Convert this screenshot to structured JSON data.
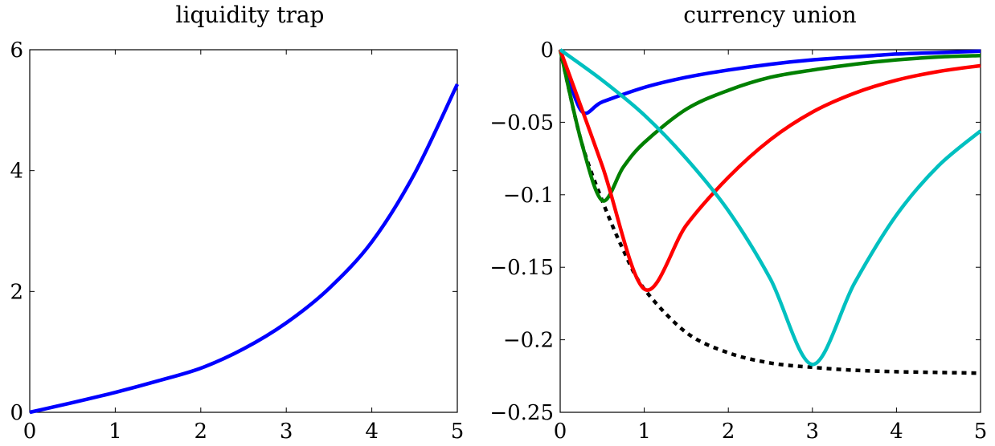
{
  "chart_data": [
    {
      "type": "line",
      "title": "liquidity trap",
      "xlabel": "",
      "ylabel": "",
      "xlim": [
        0,
        5
      ],
      "ylim": [
        0,
        6
      ],
      "xticks": [
        0,
        1,
        2,
        3,
        4,
        5
      ],
      "xtick_labels": [
        "0",
        "1",
        "2",
        "3",
        "4",
        "5"
      ],
      "yticks": [
        0,
        2,
        4,
        6
      ],
      "ytick_labels": [
        "0",
        "2",
        "4",
        "6"
      ],
      "grid": false,
      "series": [
        {
          "color": "#0000ff",
          "style": "solid",
          "x": [
            0,
            0.5,
            1,
            1.5,
            2,
            2.5,
            3,
            3.5,
            4,
            4.5,
            5
          ],
          "y": [
            0,
            0.16,
            0.33,
            0.52,
            0.73,
            1.05,
            1.48,
            2.05,
            2.82,
            3.95,
            5.43
          ]
        }
      ]
    },
    {
      "type": "line",
      "title": "currency union",
      "xlabel": "",
      "ylabel": "",
      "xlim": [
        0,
        5
      ],
      "ylim": [
        -0.25,
        0
      ],
      "xticks": [
        0,
        1,
        2,
        3,
        4,
        5
      ],
      "xtick_labels": [
        "0",
        "1",
        "2",
        "3",
        "4",
        "5"
      ],
      "yticks": [
        0,
        -0.05,
        -0.1,
        -0.15,
        -0.2,
        -0.25
      ],
      "ytick_labels": [
        "0",
        "−0.05",
        "−0.1",
        "−0.15",
        "−0.2",
        "−0.25"
      ],
      "grid": false,
      "series": [
        {
          "color": "#000000",
          "style": "dashed",
          "x": [
            0,
            0.25,
            0.5,
            0.75,
            1,
            1.5,
            2,
            2.5,
            3,
            3.5,
            4,
            4.5,
            5
          ],
          "y": [
            0,
            -0.063,
            -0.104,
            -0.138,
            -0.165,
            -0.195,
            -0.209,
            -0.216,
            -0.219,
            -0.221,
            -0.222,
            -0.2225,
            -0.223
          ]
        },
        {
          "color": "#0000ff",
          "style": "solid",
          "x": [
            0,
            0.25,
            0.5,
            1,
            1.5,
            2,
            2.5,
            3,
            3.5,
            4,
            4.5,
            5
          ],
          "y": [
            0,
            -0.042,
            -0.036,
            -0.026,
            -0.019,
            -0.014,
            -0.01,
            -0.007,
            -0.005,
            -0.003,
            -0.002,
            -0.001
          ]
        },
        {
          "color": "#008000",
          "style": "solid",
          "x": [
            0,
            0.25,
            0.5,
            0.75,
            1,
            1.5,
            2,
            2.5,
            3,
            3.5,
            4,
            4.5,
            5
          ],
          "y": [
            0,
            -0.063,
            -0.104,
            -0.081,
            -0.064,
            -0.041,
            -0.028,
            -0.019,
            -0.014,
            -0.01,
            -0.007,
            -0.005,
            -0.004
          ]
        },
        {
          "color": "#ff0000",
          "style": "solid",
          "x": [
            0,
            0.5,
            1,
            1.5,
            2,
            2.5,
            3,
            3.5,
            4,
            4.5,
            5
          ],
          "y": [
            0,
            -0.08,
            -0.165,
            -0.121,
            -0.088,
            -0.062,
            -0.043,
            -0.03,
            -0.021,
            -0.015,
            -0.011
          ]
        },
        {
          "color": "#00c0c0",
          "style": "solid",
          "x": [
            0,
            0.5,
            1,
            1.5,
            2,
            2.5,
            3,
            3.5,
            4,
            4.5,
            5
          ],
          "y": [
            0,
            -0.021,
            -0.045,
            -0.075,
            -0.111,
            -0.158,
            -0.217,
            -0.161,
            -0.114,
            -0.08,
            -0.056
          ]
        }
      ]
    }
  ]
}
